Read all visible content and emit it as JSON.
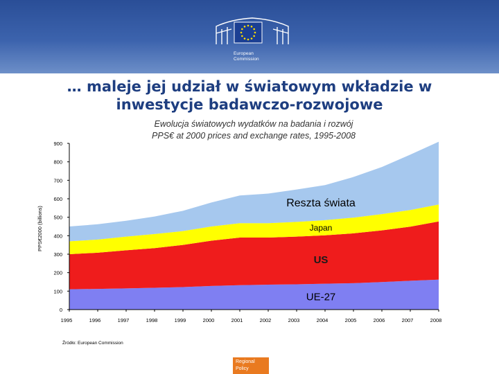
{
  "header": {
    "org_line1": "European",
    "org_line2": "Commission"
  },
  "slide": {
    "title": "… maleje jej udział w światowym wkładzie w\ninwestycje badawczo-rozwojowe",
    "source": "Źródło: European Commission",
    "footer_badge": "Regional\nPolicy"
  },
  "colors": {
    "ue27": "#7f7ff2",
    "us": "#ef1c1c",
    "japan": "#ffff00",
    "reszta": "#a6c8ee",
    "title": "#1e3e80",
    "header": "#2a4e97",
    "badge": "#e97a20"
  },
  "chart_data": {
    "type": "area",
    "stacked": true,
    "title": "Ewolucja światowych wydatków na badania i rozwój",
    "subtitle": "PPS€ at 2000 prices and exchange rates, 1995-2008",
    "ylabel": "PPS€2000 (billions)",
    "xlabel": "",
    "ylim": [
      0,
      900
    ],
    "yticks": [
      0,
      100,
      200,
      300,
      400,
      500,
      600,
      700,
      800,
      900
    ],
    "x": [
      1995,
      1996,
      1997,
      1998,
      1999,
      2000,
      2001,
      2002,
      2003,
      2004,
      2005,
      2006,
      2007,
      2008
    ],
    "grid": false,
    "series": [
      {
        "name": "UE-27",
        "color": "#7f7ff2",
        "values": [
          110,
          112,
          115,
          118,
          122,
          128,
          132,
          135,
          137,
          140,
          143,
          149,
          156,
          162
        ]
      },
      {
        "name": "US",
        "color": "#ef1c1c",
        "values": [
          190,
          196,
          206,
          215,
          228,
          245,
          258,
          255,
          258,
          262,
          270,
          280,
          293,
          315
        ]
      },
      {
        "name": "Japan",
        "color": "#ffff00",
        "values": [
          70,
          71,
          74,
          76,
          75,
          77,
          78,
          78,
          80,
          82,
          85,
          88,
          90,
          92
        ]
      },
      {
        "name": "Reszta świata",
        "color": "#a6c8ee",
        "values": [
          80,
          83,
          86,
          95,
          110,
          130,
          150,
          160,
          175,
          190,
          220,
          255,
          300,
          340
        ]
      }
    ]
  }
}
